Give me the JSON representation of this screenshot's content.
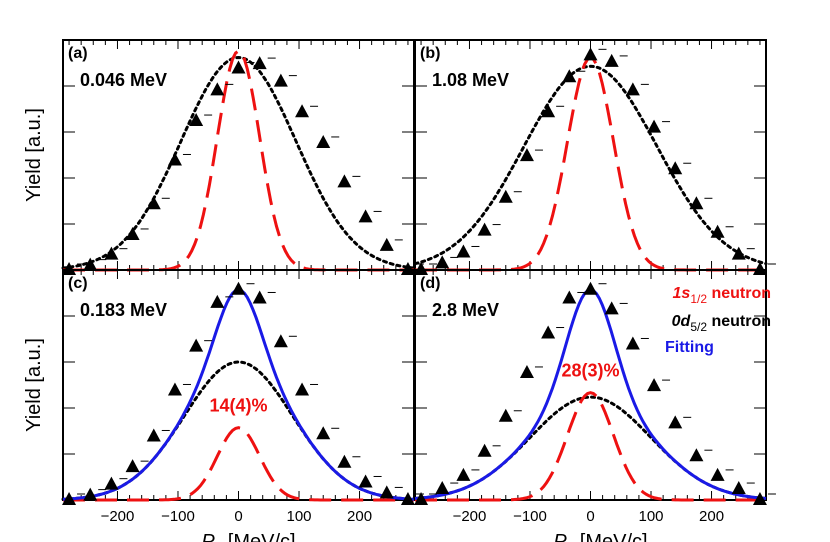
{
  "chart_data": {
    "type": "scatter",
    "x_axis_label_symbol": "P",
    "x_axis_label_sub": "x",
    "x_axis_label_unit": "[MeV/c]",
    "y_axis_label": "Yield [a.u.]",
    "x_ticks": [
      "−200",
      "−100",
      "0",
      "100",
      "200"
    ],
    "xlim": [
      -290,
      290
    ],
    "x_tick_values": [
      -200,
      -100,
      0,
      100,
      200
    ],
    "data_x": [
      -280,
      -245,
      -210,
      -175,
      -140,
      -105,
      -70,
      -35,
      0,
      35,
      70,
      105,
      140,
      175,
      210,
      245,
      280
    ],
    "legend": {
      "s_label_main": "1s",
      "s_label_sub": "1/2",
      "s_label_tail": " neutron",
      "d_label_main": "0d",
      "d_label_sub": "5/2",
      "d_label_tail": " neutron",
      "fit_label": "Fitting"
    },
    "colors": {
      "s_wave": "#ee1111",
      "d_wave": "#000000",
      "fit": "#1a1ae6",
      "data": "#000000"
    },
    "panels": [
      {
        "label": "(a)",
        "energy": "0.046 MeV",
        "percent": "",
        "ylim": [
          0,
          1.05
        ],
        "s_amp": 1.0,
        "s_sigma": 35,
        "d_amp": 0.97,
        "d_sigma": 95,
        "show_fit": false,
        "data_y": [
          0.0,
          0.02,
          0.07,
          0.16,
          0.3,
          0.5,
          0.68,
          0.82,
          0.92,
          0.94,
          0.86,
          0.72,
          0.58,
          0.4,
          0.24,
          0.11,
          0.0
        ]
      },
      {
        "label": "(b)",
        "energy": "1.08 MeV",
        "percent": "",
        "ylim": [
          0,
          1.05
        ],
        "s_amp": 0.97,
        "s_sigma": 38,
        "d_amp": 0.93,
        "d_sigma": 110,
        "show_fit": false,
        "data_y": [
          0.0,
          0.03,
          0.08,
          0.18,
          0.33,
          0.52,
          0.72,
          0.88,
          0.98,
          0.95,
          0.82,
          0.65,
          0.46,
          0.3,
          0.17,
          0.07,
          0.0
        ]
      },
      {
        "label": "(c)",
        "energy": "0.183 MeV",
        "percent": "14(4)%",
        "ylim": [
          0,
          1.05
        ],
        "s_amp": 0.33,
        "s_sigma": 35,
        "d_amp": 0.63,
        "d_sigma": 90,
        "show_fit": true,
        "data_y": [
          0.0,
          0.02,
          0.07,
          0.15,
          0.29,
          0.5,
          0.7,
          0.9,
          0.96,
          0.92,
          0.72,
          0.5,
          0.3,
          0.17,
          0.08,
          0.03,
          0.0
        ]
      },
      {
        "label": "(d)",
        "energy": "2.8 MeV",
        "percent": "28(3)%",
        "ylim": [
          0,
          1.05
        ],
        "s_amp": 0.49,
        "s_sigma": 38,
        "d_amp": 0.47,
        "d_sigma": 100,
        "show_fit": true,
        "data_y": [
          0.0,
          0.05,
          0.11,
          0.22,
          0.38,
          0.58,
          0.76,
          0.92,
          0.96,
          0.87,
          0.71,
          0.52,
          0.35,
          0.2,
          0.11,
          0.05,
          0.0
        ]
      }
    ]
  }
}
